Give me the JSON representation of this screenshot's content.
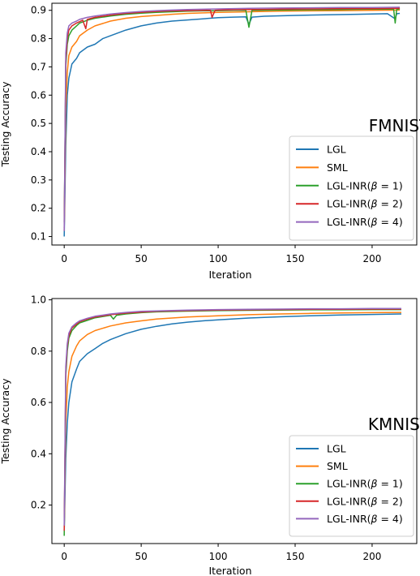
{
  "chart_data": [
    {
      "type": "line",
      "title": "FMNIST",
      "xlabel": "Iteration",
      "ylabel": "Testing Accuracy",
      "xlim": [
        -8,
        229
      ],
      "ylim": [
        0.07,
        0.925
      ],
      "xticks": [
        0,
        50,
        100,
        150,
        200
      ],
      "xtick_labels": [
        "0",
        "50",
        "100",
        "150",
        "200"
      ],
      "yticks": [
        0.1,
        0.2,
        0.3,
        0.4,
        0.5,
        0.6,
        0.7,
        0.8,
        0.9
      ],
      "ytick_labels": [
        "0.1",
        "0.2",
        "0.3",
        "0.4",
        "0.5",
        "0.6",
        "0.7",
        "0.8",
        "0.9"
      ],
      "legend": "lower-right",
      "grid": false,
      "series": [
        {
          "name": "LGL",
          "color": "#1f77b4",
          "x": [
            0,
            1,
            2,
            3,
            5,
            8,
            10,
            15,
            20,
            25,
            30,
            40,
            50,
            60,
            70,
            80,
            90,
            100,
            110,
            118,
            120,
            122,
            130,
            150,
            170,
            190,
            210,
            215,
            216,
            218
          ],
          "y": [
            0.1,
            0.42,
            0.6,
            0.66,
            0.71,
            0.73,
            0.75,
            0.77,
            0.78,
            0.8,
            0.81,
            0.83,
            0.845,
            0.855,
            0.862,
            0.866,
            0.87,
            0.874,
            0.876,
            0.877,
            0.85,
            0.876,
            0.879,
            0.882,
            0.884,
            0.886,
            0.888,
            0.87,
            0.888,
            0.889
          ]
        },
        {
          "name": "SML",
          "color": "#ff7f0e",
          "x": [
            0,
            1,
            2,
            3,
            5,
            8,
            10,
            15,
            20,
            30,
            40,
            50,
            60,
            70,
            80,
            90,
            100,
            120,
            140,
            160,
            180,
            200,
            218
          ],
          "y": [
            0.13,
            0.55,
            0.68,
            0.74,
            0.77,
            0.79,
            0.81,
            0.83,
            0.845,
            0.862,
            0.872,
            0.878,
            0.882,
            0.886,
            0.889,
            0.891,
            0.893,
            0.895,
            0.897,
            0.898,
            0.899,
            0.9,
            0.901
          ]
        },
        {
          "name": "LGL-INR($\\beta$ = 1)",
          "color": "#2ca02c",
          "x": [
            0,
            1,
            2,
            3,
            5,
            8,
            10,
            15,
            20,
            30,
            40,
            50,
            60,
            70,
            80,
            90,
            100,
            110,
            118,
            120,
            122,
            140,
            160,
            180,
            200,
            214,
            215,
            216,
            218
          ],
          "y": [
            0.15,
            0.7,
            0.78,
            0.81,
            0.83,
            0.845,
            0.855,
            0.865,
            0.872,
            0.88,
            0.886,
            0.89,
            0.893,
            0.895,
            0.897,
            0.898,
            0.899,
            0.9,
            0.9,
            0.84,
            0.9,
            0.901,
            0.902,
            0.903,
            0.904,
            0.904,
            0.855,
            0.904,
            0.905
          ]
        },
        {
          "name": "LGL-INR($\\beta$ = 2)",
          "color": "#d62728",
          "x": [
            0,
            1,
            2,
            3,
            5,
            8,
            10,
            12,
            14,
            15,
            20,
            30,
            40,
            50,
            60,
            70,
            80,
            95,
            96,
            98,
            100,
            120,
            140,
            160,
            180,
            200,
            218
          ],
          "y": [
            0.12,
            0.72,
            0.8,
            0.83,
            0.845,
            0.855,
            0.86,
            0.865,
            0.835,
            0.868,
            0.875,
            0.883,
            0.889,
            0.893,
            0.896,
            0.898,
            0.899,
            0.9,
            0.875,
            0.9,
            0.901,
            0.903,
            0.904,
            0.905,
            0.906,
            0.906,
            0.907
          ]
        },
        {
          "name": "LGL-INR($\\beta$ = 4)",
          "color": "#9467bd",
          "x": [
            0,
            1,
            2,
            3,
            5,
            8,
            10,
            15,
            20,
            30,
            40,
            50,
            60,
            70,
            80,
            100,
            120,
            140,
            160,
            180,
            200,
            218
          ],
          "y": [
            0.12,
            0.75,
            0.82,
            0.845,
            0.855,
            0.862,
            0.868,
            0.875,
            0.88,
            0.887,
            0.892,
            0.896,
            0.899,
            0.901,
            0.903,
            0.905,
            0.907,
            0.908,
            0.909,
            0.91,
            0.91,
            0.911
          ]
        }
      ]
    },
    {
      "type": "line",
      "title": "KMNIST",
      "xlabel": "Iteration",
      "ylabel": "Testing Accuracy",
      "xlim": [
        -8,
        229
      ],
      "ylim": [
        0.05,
        1.005
      ],
      "xticks": [
        0,
        50,
        100,
        150,
        200
      ],
      "xtick_labels": [
        "0",
        "50",
        "100",
        "150",
        "200"
      ],
      "yticks": [
        0.2,
        0.4,
        0.6,
        0.8,
        1.0
      ],
      "ytick_labels": [
        "0.2",
        "0.4",
        "0.6",
        "0.8",
        "1.0"
      ],
      "legend": "lower-right",
      "grid": false,
      "series": [
        {
          "name": "LGL",
          "color": "#1f77b4",
          "x": [
            0,
            1,
            2,
            3,
            5,
            8,
            10,
            15,
            20,
            25,
            30,
            40,
            50,
            60,
            70,
            80,
            90,
            100,
            120,
            140,
            160,
            180,
            200,
            219
          ],
          "y": [
            0.1,
            0.38,
            0.52,
            0.6,
            0.68,
            0.73,
            0.76,
            0.79,
            0.81,
            0.83,
            0.845,
            0.868,
            0.885,
            0.897,
            0.906,
            0.913,
            0.918,
            0.922,
            0.929,
            0.934,
            0.938,
            0.941,
            0.943,
            0.945
          ]
        },
        {
          "name": "SML",
          "color": "#ff7f0e",
          "x": [
            0,
            1,
            2,
            3,
            5,
            8,
            10,
            15,
            20,
            30,
            40,
            50,
            60,
            80,
            100,
            120,
            140,
            160,
            180,
            200,
            219
          ],
          "y": [
            0.12,
            0.52,
            0.66,
            0.72,
            0.78,
            0.82,
            0.84,
            0.865,
            0.88,
            0.898,
            0.91,
            0.918,
            0.925,
            0.933,
            0.938,
            0.942,
            0.945,
            0.947,
            0.949,
            0.95,
            0.951
          ]
        },
        {
          "name": "LGL-INR($\\beta$ = 1)",
          "color": "#2ca02c",
          "x": [
            0,
            1,
            2,
            3,
            5,
            8,
            10,
            15,
            20,
            30,
            32,
            34,
            40,
            50,
            60,
            80,
            100,
            120,
            140,
            160,
            180,
            200,
            219
          ],
          "y": [
            0.08,
            0.7,
            0.8,
            0.85,
            0.88,
            0.9,
            0.91,
            0.92,
            0.93,
            0.94,
            0.925,
            0.94,
            0.945,
            0.95,
            0.953,
            0.956,
            0.958,
            0.959,
            0.96,
            0.961,
            0.961,
            0.962,
            0.962
          ]
        },
        {
          "name": "LGL-INR($\\beta$ = 2)",
          "color": "#d62728",
          "x": [
            0,
            1,
            2,
            3,
            5,
            8,
            10,
            15,
            20,
            30,
            40,
            50,
            60,
            80,
            100,
            120,
            140,
            160,
            180,
            200,
            219
          ],
          "y": [
            0.1,
            0.72,
            0.82,
            0.86,
            0.89,
            0.905,
            0.915,
            0.925,
            0.933,
            0.942,
            0.948,
            0.952,
            0.955,
            0.958,
            0.96,
            0.961,
            0.962,
            0.963,
            0.963,
            0.964,
            0.964
          ]
        },
        {
          "name": "LGL-INR($\\beta$ = 4)",
          "color": "#9467bd",
          "x": [
            0,
            1,
            2,
            3,
            5,
            8,
            10,
            15,
            20,
            30,
            40,
            50,
            60,
            80,
            100,
            120,
            140,
            160,
            180,
            200,
            219
          ],
          "y": [
            0.12,
            0.74,
            0.83,
            0.87,
            0.895,
            0.91,
            0.918,
            0.928,
            0.936,
            0.945,
            0.951,
            0.955,
            0.957,
            0.96,
            0.962,
            0.963,
            0.964,
            0.965,
            0.965,
            0.966,
            0.966
          ]
        }
      ]
    }
  ]
}
